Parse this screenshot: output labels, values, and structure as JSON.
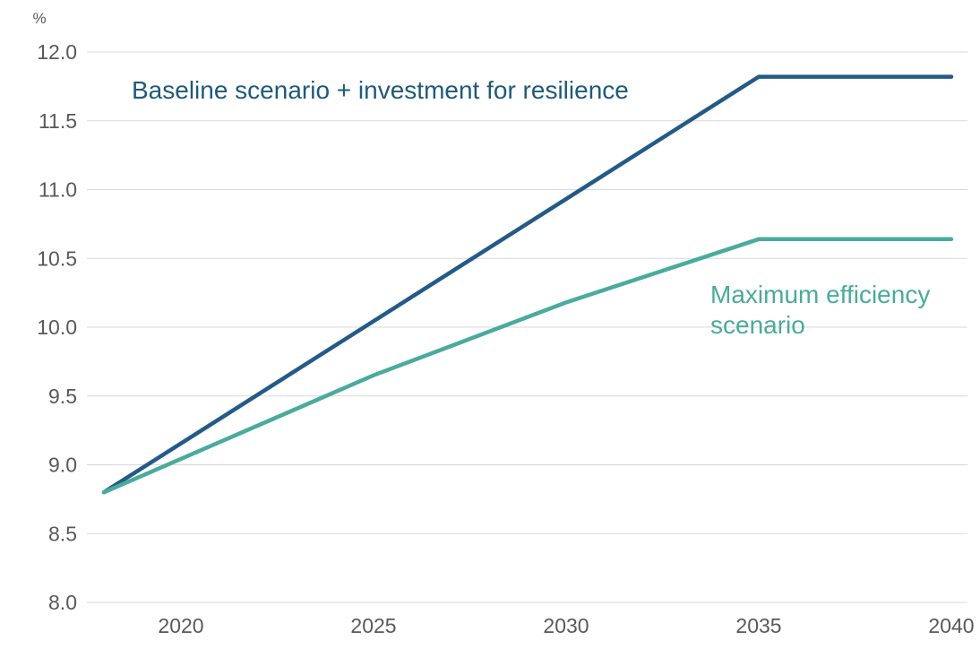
{
  "chart_data": {
    "type": "line",
    "unit_label": "%",
    "x": [
      2018,
      2035,
      2040
    ],
    "xticks": [
      2020,
      2025,
      2030,
      2035,
      2040
    ],
    "xtick_labels": [
      "2020",
      "2025",
      "2030",
      "2035",
      "2040"
    ],
    "xlim": [
      2018,
      2040
    ],
    "ylim": [
      8.0,
      12.0
    ],
    "yticks": [
      8.0,
      8.5,
      9.0,
      9.5,
      10.0,
      10.5,
      11.0,
      11.5,
      12.0
    ],
    "ytick_labels": [
      "8.0",
      "8.5",
      "9.0",
      "9.5",
      "10.0",
      "10.5",
      "11.0",
      "11.5",
      "12.0"
    ],
    "grid": true,
    "series": [
      {
        "name": "Baseline scenario + investment for resilience",
        "color": "#235a87",
        "points": [
          [
            2018,
            8.8
          ],
          [
            2035,
            11.82
          ],
          [
            2040,
            11.82
          ]
        ]
      },
      {
        "name": "Maximum efficiency scenario",
        "color": "#4aab9c",
        "points": [
          [
            2018,
            8.8
          ],
          [
            2025,
            9.65
          ],
          [
            2030,
            10.18
          ],
          [
            2035,
            10.64
          ],
          [
            2040,
            10.64
          ]
        ]
      }
    ],
    "annotations": [
      {
        "lines": [
          "Baseline scenario + investment for resilience"
        ],
        "color": "#1f5a7a"
      },
      {
        "lines": [
          "Maximum efficiency",
          "scenario"
        ],
        "color": "#4aab9c"
      }
    ]
  }
}
